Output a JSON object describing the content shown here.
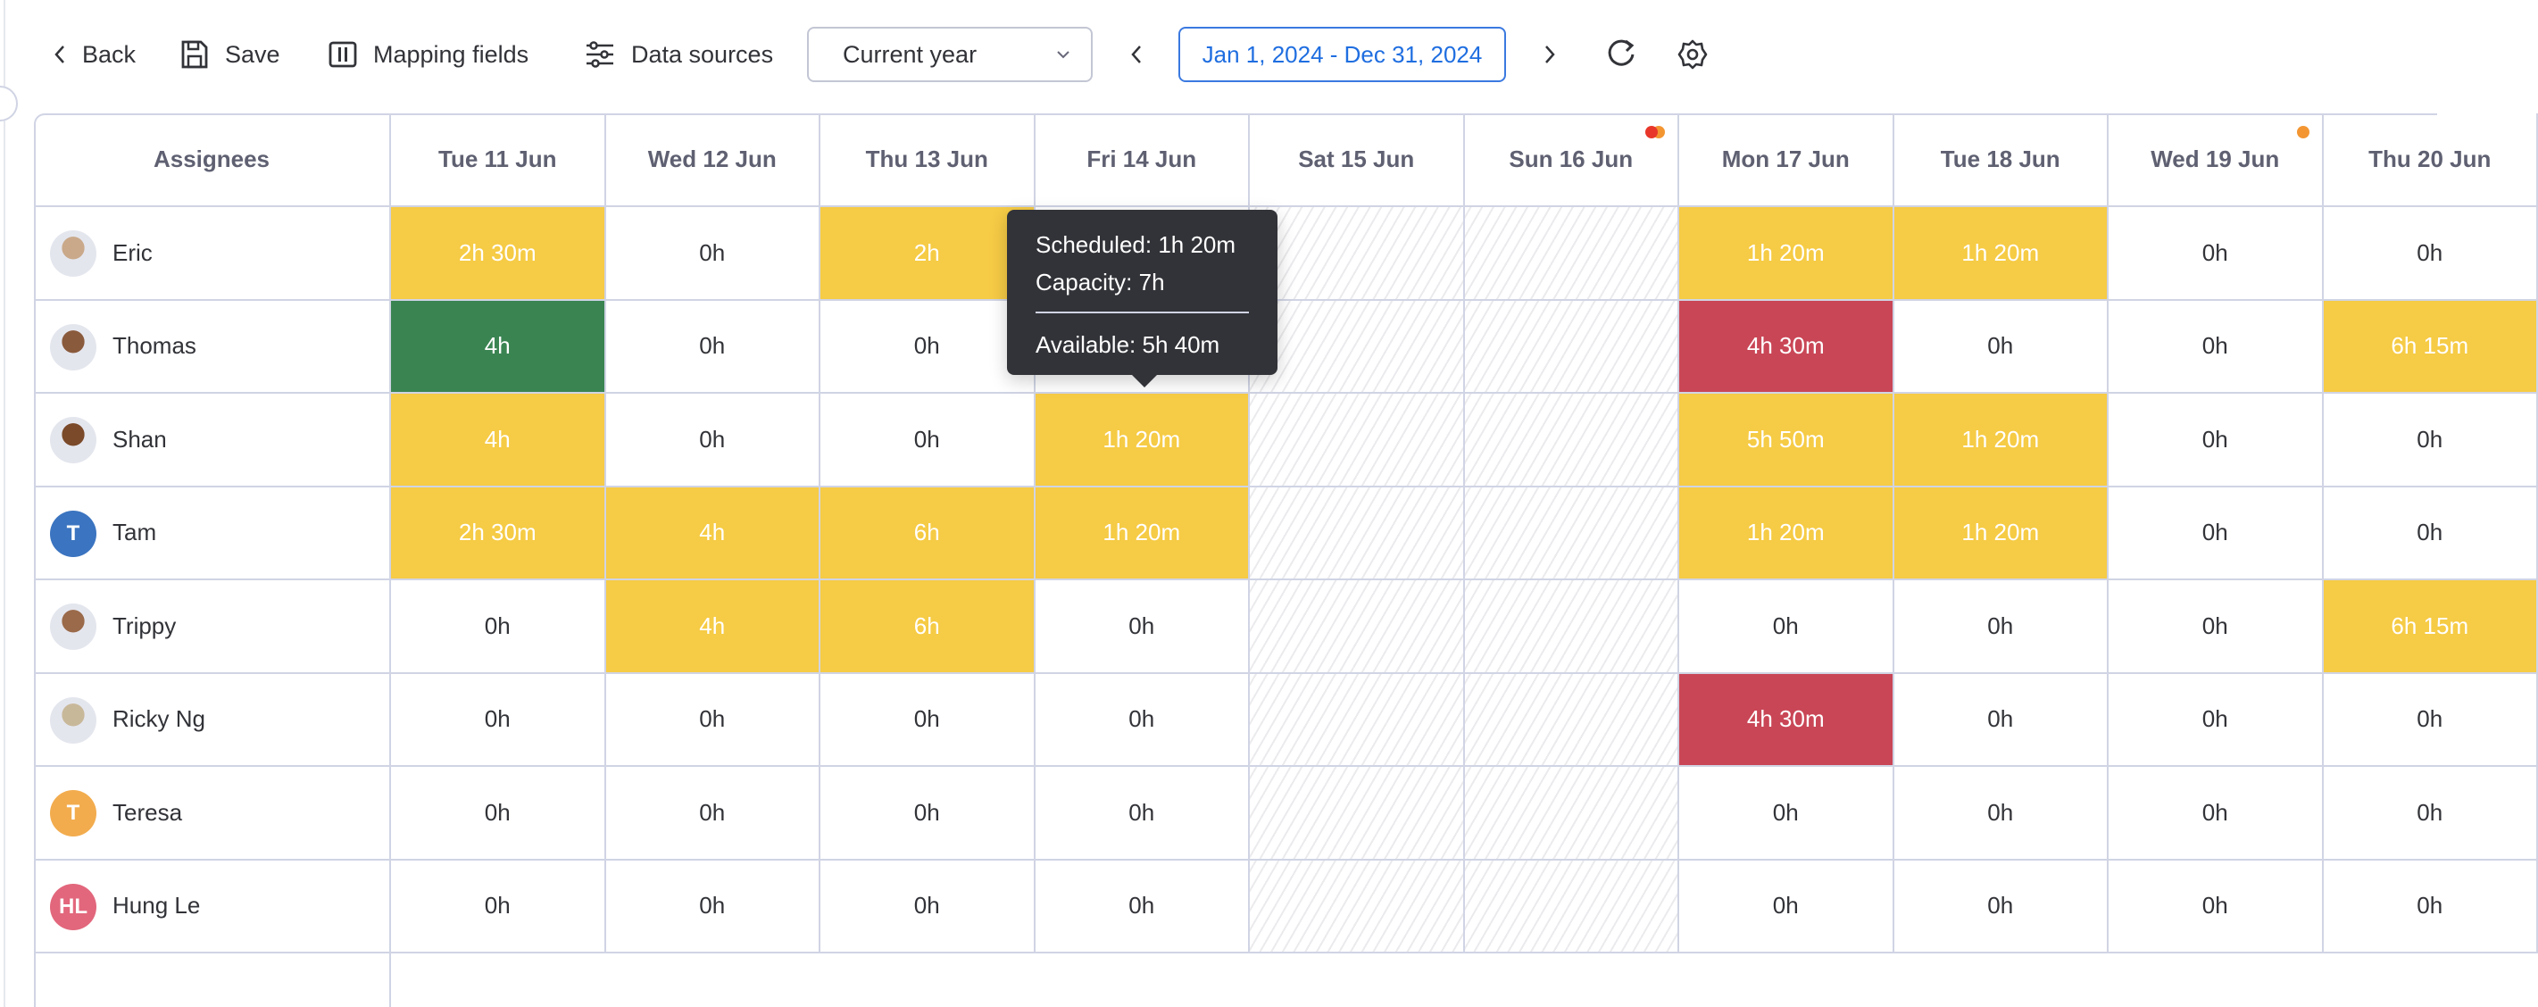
{
  "toolbar": {
    "back_label": "Back",
    "save_label": "Save",
    "mapping_label": "Mapping fields",
    "data_sources_label": "Data sources",
    "period_select": "Current year",
    "date_range": "Jan 1, 2024 - Dec 31, 2024",
    "icons": [
      "chevron-left-icon",
      "save-icon",
      "columns-icon",
      "sliders-icon",
      "chevron-down-icon",
      "chevron-right-icon",
      "refresh-icon",
      "gear-icon"
    ]
  },
  "colors": {
    "scheduled": "#f6cb45",
    "full": "#3a8452",
    "over": "#c94656",
    "accent": "#1f6ee0",
    "tooltip_bg": "#323338",
    "dot_orange": "#f39632",
    "dot_red": "#e8372a"
  },
  "table": {
    "assignee_header": "Assignees",
    "days": [
      {
        "label": "Tue 11 Jun",
        "weekend": false,
        "dots": []
      },
      {
        "label": "Wed 12 Jun",
        "weekend": false,
        "dots": []
      },
      {
        "label": "Thu 13 Jun",
        "weekend": false,
        "dots": []
      },
      {
        "label": "Fri 14 Jun",
        "weekend": false,
        "dots": []
      },
      {
        "label": "Sat 15 Jun",
        "weekend": true,
        "dots": []
      },
      {
        "label": "Sun 16 Jun",
        "weekend": true,
        "dots": [
          "dot_orange",
          "dot_red"
        ]
      },
      {
        "label": "Mon 17 Jun",
        "weekend": false,
        "dots": []
      },
      {
        "label": "Tue 18 Jun",
        "weekend": false,
        "dots": []
      },
      {
        "label": "Wed 19 Jun",
        "weekend": false,
        "dots": [
          "dot_orange"
        ]
      },
      {
        "label": "Thu 20 Jun",
        "weekend": false,
        "dots": []
      }
    ],
    "rows": [
      {
        "name": "Eric",
        "avatar": {
          "type": "photo",
          "color": "#c9a98a"
        },
        "cells": [
          [
            "2h 30m",
            "scheduled"
          ],
          [
            "0h",
            ""
          ],
          [
            "2h",
            "scheduled"
          ],
          [
            null,
            ""
          ],
          null,
          null,
          [
            "1h 20m",
            "scheduled"
          ],
          [
            "1h 20m",
            "scheduled"
          ],
          [
            "0h",
            ""
          ],
          [
            "0h",
            ""
          ]
        ]
      },
      {
        "name": "Thomas",
        "avatar": {
          "type": "photo",
          "color": "#8a5a3c"
        },
        "cells": [
          [
            "4h",
            "full"
          ],
          [
            "0h",
            ""
          ],
          [
            "0h",
            ""
          ],
          [
            null,
            ""
          ],
          null,
          null,
          [
            "4h 30m",
            "over"
          ],
          [
            "0h",
            ""
          ],
          [
            "0h",
            ""
          ],
          [
            "6h 15m",
            "scheduled"
          ]
        ]
      },
      {
        "name": "Shan",
        "avatar": {
          "type": "photo",
          "color": "#7a4a2a"
        },
        "cells": [
          [
            "4h",
            "scheduled"
          ],
          [
            "0h",
            ""
          ],
          [
            "0h",
            ""
          ],
          [
            "1h 20m",
            "scheduled"
          ],
          null,
          null,
          [
            "5h 50m",
            "scheduled"
          ],
          [
            "1h 20m",
            "scheduled"
          ],
          [
            "0h",
            ""
          ],
          [
            "0h",
            ""
          ]
        ]
      },
      {
        "name": "Tam",
        "avatar": {
          "type": "initials",
          "initials": "T",
          "color": "#3b74c0"
        },
        "cells": [
          [
            "2h 30m",
            "scheduled"
          ],
          [
            "4h",
            "scheduled"
          ],
          [
            "6h",
            "scheduled"
          ],
          [
            "1h 20m",
            "scheduled"
          ],
          null,
          null,
          [
            "1h 20m",
            "scheduled"
          ],
          [
            "1h 20m",
            "scheduled"
          ],
          [
            "0h",
            ""
          ],
          [
            "0h",
            ""
          ]
        ]
      },
      {
        "name": "Trippy",
        "avatar": {
          "type": "photo",
          "color": "#9a6a4a"
        },
        "cells": [
          [
            "0h",
            ""
          ],
          [
            "4h",
            "scheduled"
          ],
          [
            "6h",
            "scheduled"
          ],
          [
            "0h",
            ""
          ],
          null,
          null,
          [
            "0h",
            ""
          ],
          [
            "0h",
            ""
          ],
          [
            "0h",
            ""
          ],
          [
            "6h 15m",
            "scheduled"
          ]
        ]
      },
      {
        "name": "Ricky Ng",
        "avatar": {
          "type": "photo",
          "color": "#c8b89a"
        },
        "cells": [
          [
            "0h",
            ""
          ],
          [
            "0h",
            ""
          ],
          [
            "0h",
            ""
          ],
          [
            "0h",
            ""
          ],
          null,
          null,
          [
            "4h 30m",
            "over"
          ],
          [
            "0h",
            ""
          ],
          [
            "0h",
            ""
          ],
          [
            "0h",
            ""
          ]
        ]
      },
      {
        "name": "Teresa",
        "avatar": {
          "type": "initials",
          "initials": "T",
          "color": "#f2ac4e"
        },
        "cells": [
          [
            "0h",
            ""
          ],
          [
            "0h",
            ""
          ],
          [
            "0h",
            ""
          ],
          [
            "0h",
            ""
          ],
          null,
          null,
          [
            "0h",
            ""
          ],
          [
            "0h",
            ""
          ],
          [
            "0h",
            ""
          ],
          [
            "0h",
            ""
          ]
        ]
      },
      {
        "name": "Hung Le",
        "avatar": {
          "type": "initials",
          "initials": "HL",
          "color": "#e2677c"
        },
        "cells": [
          [
            "0h",
            ""
          ],
          [
            "0h",
            ""
          ],
          [
            "0h",
            ""
          ],
          [
            "0h",
            ""
          ],
          null,
          null,
          [
            "0h",
            ""
          ],
          [
            "0h",
            ""
          ],
          [
            "0h",
            ""
          ],
          [
            "0h",
            ""
          ]
        ]
      }
    ]
  },
  "tooltip": {
    "scheduled": "Scheduled: 1h 20m",
    "capacity": "Capacity: 7h",
    "available": "Available: 5h 40m"
  }
}
